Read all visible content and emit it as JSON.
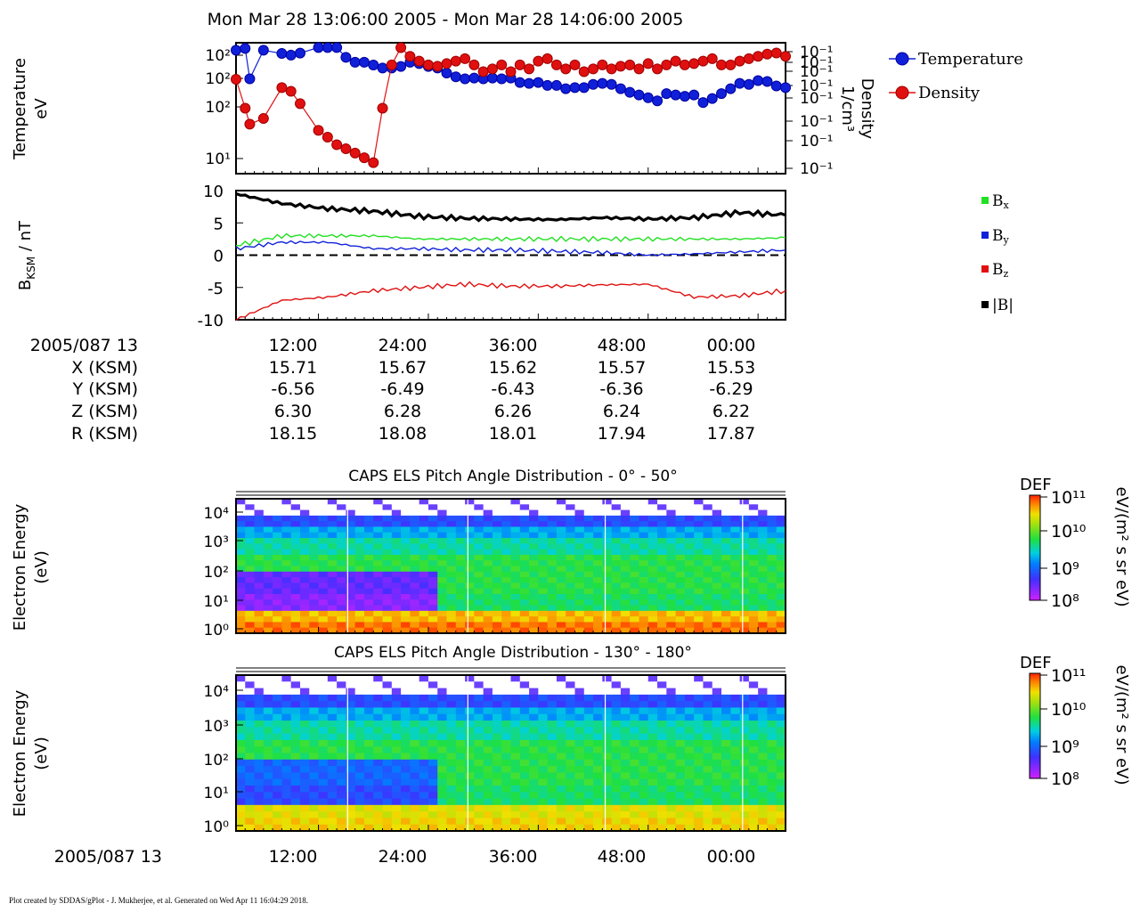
{
  "title": "Mon Mar 28 13:06:00 2005 - Mon Mar 28 14:06:00 2005",
  "footer": "Plot created by SDDAS/gPlot - J. Mukherjee, et al.  Generated on Wed Apr 11 16:04:29 2018.",
  "colors": {
    "temperature": "#1020d8",
    "density": "#e01010",
    "bx": "#22e022",
    "by": "#1020d8",
    "bz": "#e01010",
    "btot": "#000000"
  },
  "chart_data": [
    {
      "type": "line",
      "panel": "moments",
      "ylabel_left": [
        "Temperature",
        "eV"
      ],
      "ylabel_right": [
        "Density",
        "1/cm³"
      ],
      "left_ticks": [
        "10²",
        "10²",
        "10²",
        "10¹"
      ],
      "right_ticks": [
        "10⁻¹",
        "10⁻¹",
        "10⁻¹",
        "10⁻¹",
        "10⁻¹",
        "10⁻¹",
        "10⁻¹",
        "10⁻¹"
      ],
      "legend": [
        "Temperature",
        "Density"
      ],
      "series": [
        {
          "name": "Temperature",
          "x": [
            0,
            1,
            1.5,
            3,
            5,
            6,
            7,
            9,
            10,
            11,
            12,
            13,
            14,
            15,
            16,
            17,
            18,
            19,
            20,
            21,
            22,
            23,
            24,
            25,
            26,
            27,
            28,
            29,
            30,
            31,
            32,
            33,
            34,
            35,
            36,
            37,
            38,
            39,
            40,
            41,
            42,
            43,
            44,
            45,
            46,
            47,
            48,
            49,
            50,
            51,
            52,
            53,
            54,
            55,
            56,
            57,
            58,
            59,
            60
          ],
          "y": [
            185,
            195,
            80,
            185,
            168,
            160,
            170,
            200,
            200,
            200,
            150,
            130,
            130,
            120,
            110,
            110,
            115,
            130,
            125,
            115,
            110,
            95,
            85,
            80,
            82,
            80,
            82,
            80,
            82,
            72,
            70,
            72,
            66,
            66,
            60,
            62,
            62,
            68,
            70,
            68,
            60,
            54,
            50,
            46,
            42,
            52,
            50,
            48,
            50,
            40,
            45,
            52,
            60,
            70,
            68,
            76,
            74,
            65,
            62
          ]
        },
        {
          "name": "Density",
          "x": [
            0,
            1,
            1.5,
            3,
            5,
            6,
            7,
            9,
            10,
            11,
            12,
            13,
            14,
            15,
            16,
            17,
            18,
            19,
            20,
            21,
            22,
            23,
            24,
            25,
            26,
            27,
            28,
            29,
            30,
            31,
            32,
            33,
            34,
            35,
            36,
            37,
            38,
            39,
            40,
            41,
            42,
            43,
            44,
            45,
            46,
            47,
            48,
            49,
            50,
            51,
            52,
            53,
            54,
            55,
            56,
            57,
            58,
            59,
            60
          ],
          "y": [
            0.45,
            0.3,
            0.24,
            0.26,
            0.4,
            0.38,
            0.32,
            0.22,
            0.2,
            0.18,
            0.17,
            0.16,
            0.15,
            0.14,
            0.3,
            0.55,
            0.7,
            0.62,
            0.58,
            0.55,
            0.54,
            0.56,
            0.58,
            0.6,
            0.55,
            0.5,
            0.52,
            0.55,
            0.5,
            0.55,
            0.52,
            0.58,
            0.6,
            0.55,
            0.52,
            0.55,
            0.5,
            0.52,
            0.55,
            0.52,
            0.54,
            0.55,
            0.52,
            0.56,
            0.52,
            0.55,
            0.58,
            0.55,
            0.56,
            0.58,
            0.6,
            0.55,
            0.55,
            0.58,
            0.6,
            0.62,
            0.64,
            0.65,
            0.62
          ]
        }
      ]
    },
    {
      "type": "line",
      "panel": "magnetic-field",
      "ylabel": "B_KSM / nT",
      "ylim": [
        -10,
        10
      ],
      "yticks": [
        "10",
        "5",
        "0",
        "-5",
        "-10"
      ],
      "legend": [
        "Bx",
        "By",
        "Bz",
        "|B|"
      ],
      "series": [
        {
          "name": "Bx",
          "x": [
            0,
            5,
            10,
            15,
            20,
            25,
            30,
            35,
            40,
            45,
            50,
            55,
            60
          ],
          "y": [
            1.5,
            3.0,
            3.0,
            3.0,
            2.5,
            2.5,
            2.5,
            2.5,
            2.5,
            2.5,
            2.5,
            2.5,
            2.7
          ]
        },
        {
          "name": "By",
          "x": [
            0,
            5,
            10,
            15,
            20,
            25,
            30,
            35,
            40,
            45,
            50,
            55,
            60
          ],
          "y": [
            1.0,
            2.0,
            2.0,
            1.0,
            1.0,
            0.8,
            0.8,
            0.6,
            0.4,
            0.0,
            0.2,
            0.5,
            0.8
          ]
        },
        {
          "name": "Bz",
          "x": [
            0,
            5,
            10,
            15,
            20,
            25,
            30,
            35,
            40,
            45,
            50,
            55,
            60
          ],
          "y": [
            -10.0,
            -7.0,
            -6.5,
            -5.5,
            -5.0,
            -4.5,
            -4.8,
            -4.8,
            -4.6,
            -4.5,
            -6.5,
            -6.3,
            -5.5
          ]
        },
        {
          "name": "|B|",
          "x": [
            0,
            5,
            10,
            15,
            20,
            25,
            30,
            35,
            40,
            45,
            50,
            55,
            60
          ],
          "y": [
            9.5,
            8.0,
            7.2,
            6.8,
            6.0,
            5.7,
            5.6,
            5.5,
            5.8,
            5.6,
            5.8,
            6.6,
            6.2
          ]
        }
      ],
      "zero_line": "dashed"
    },
    {
      "type": "heatmap",
      "panel": "els-pad-0-50",
      "title": "CAPS ELS Pitch Angle Distribution - 0° - 50°",
      "ylabel": [
        "Electron Energy",
        "(eV)"
      ],
      "yticks": [
        "10⁴",
        "10³",
        "10²",
        "10¹",
        "10⁰"
      ],
      "colorbar": {
        "label": "DEF",
        "units": "eV/(m² s sr eV)",
        "ticks": [
          "10¹¹",
          "10¹⁰",
          "10⁹",
          "10⁸"
        ]
      }
    },
    {
      "type": "heatmap",
      "panel": "els-pad-130-180",
      "title": "CAPS ELS Pitch Angle Distribution - 130° - 180°",
      "ylabel": [
        "Electron Energy",
        "(eV)"
      ],
      "yticks": [
        "10⁴",
        "10³",
        "10²",
        "10¹",
        "10⁰"
      ],
      "colorbar": {
        "label": "DEF",
        "units": "eV/(m² s sr eV)",
        "ticks": [
          "10¹¹",
          "10¹⁰",
          "10⁹",
          "10⁸"
        ]
      }
    }
  ],
  "ephemeris": {
    "row_labels": [
      "2005/087 13",
      "X (KSM)",
      "Y (KSM)",
      "Z (KSM)",
      "R (KSM)"
    ],
    "times": [
      "12:00",
      "24:00",
      "36:00",
      "48:00",
      "00:00"
    ],
    "X": [
      "15.71",
      "15.67",
      "15.62",
      "15.57",
      "15.53"
    ],
    "Y": [
      "-6.56",
      "-6.49",
      "-6.43",
      "-6.36",
      "-6.29"
    ],
    "Z": [
      "6.30",
      "6.28",
      "6.26",
      "6.24",
      "6.22"
    ],
    "R": [
      "18.15",
      "18.08",
      "18.01",
      "17.94",
      "17.87"
    ]
  },
  "bottom_axis": {
    "date_label": "2005/087 13",
    "times": [
      "12:00",
      "24:00",
      "36:00",
      "48:00",
      "00:00"
    ]
  }
}
